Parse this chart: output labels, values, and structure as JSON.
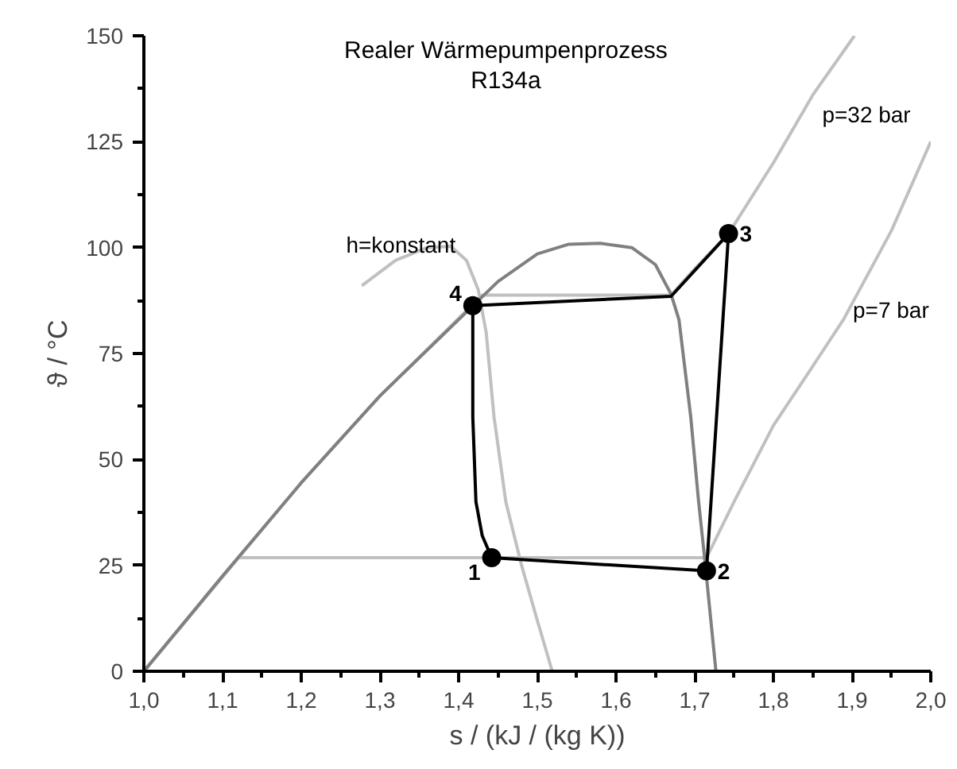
{
  "chart_data": {
    "type": "line",
    "title": "Realer Wärmepumpenprozess",
    "subtitle": "R134a",
    "xlabel": "s / (kJ / (kg K))",
    "ylabel": "ϑ / °C",
    "xlim": [
      1.0,
      2.0
    ],
    "ylim": [
      0,
      150
    ],
    "xticks": [
      {
        "value": 1.0,
        "label": "1,0"
      },
      {
        "value": 1.1,
        "label": "1,1"
      },
      {
        "value": 1.2,
        "label": "1,2"
      },
      {
        "value": 1.3,
        "label": "1,3"
      },
      {
        "value": 1.4,
        "label": "1,4"
      },
      {
        "value": 1.5,
        "label": "1,5"
      },
      {
        "value": 1.6,
        "label": "1,6"
      },
      {
        "value": 1.7,
        "label": "1,7"
      },
      {
        "value": 1.8,
        "label": "1,8"
      },
      {
        "value": 1.9,
        "label": "1,9"
      },
      {
        "value": 2.0,
        "label": "2,0"
      }
    ],
    "yticks": [
      0,
      25,
      50,
      75,
      100,
      125,
      150
    ],
    "grid": false,
    "marker": "none",
    "line_style": "solid",
    "series": [
      {
        "name": "p=7 bar",
        "color": "#c0c0c0",
        "x": [
          1.0,
          1.12,
          1.715,
          1.75,
          1.8,
          1.85,
          1.889,
          1.95,
          2.0
        ],
        "values": [
          0,
          26.8,
          26.8,
          40,
          58,
          72,
          83,
          104,
          125
        ]
      },
      {
        "name": "p=32 bar",
        "color": "#c0c0c0",
        "x": [
          1.0,
          1.2,
          1.3,
          1.43,
          1.67,
          1.7,
          1.743,
          1.8,
          1.85,
          1.903
        ],
        "values": [
          0,
          44.5,
          65,
          88.8,
          88.8,
          95,
          103.3,
          120,
          136,
          150
        ]
      },
      {
        "name": "h=konstant",
        "color": "#c0c0c0",
        "x": [
          1.277,
          1.32,
          1.36,
          1.39,
          1.41,
          1.425,
          1.435,
          1.445,
          1.46,
          1.48,
          1.5,
          1.519
        ],
        "values": [
          91,
          97,
          100,
          100.3,
          97,
          90,
          80,
          60,
          40,
          25,
          12,
          0
        ]
      },
      {
        "color": "#808080",
        "x": [
          1.0,
          1.1,
          1.2,
          1.3,
          1.4,
          1.45,
          1.5,
          1.54,
          1.58,
          1.62,
          1.65,
          1.67,
          1.68,
          1.695,
          1.705,
          1.713,
          1.727
        ],
        "values": [
          0,
          22.5,
          44.5,
          65,
          83,
          92,
          98.5,
          100.8,
          101,
          100,
          96,
          89,
          83,
          60,
          40,
          26,
          0
        ]
      },
      {
        "color": "#000000",
        "x": [
          1.442,
          1.715,
          1.743
        ],
        "values": [
          26.8,
          23.7,
          103.3
        ]
      },
      {
        "color": "#000000",
        "x": [
          1.418,
          1.67,
          1.743
        ],
        "values": [
          86.3,
          88.5,
          103.3
        ]
      },
      {
        "color": "#000000",
        "x": [
          1.418,
          1.418,
          1.422,
          1.43,
          1.442
        ],
        "values": [
          86.3,
          60,
          40,
          32,
          26.8
        ]
      },
      {
        "type": "scatter",
        "marker": "circle",
        "color": "#000000",
        "x": [
          1.442,
          1.715,
          1.743,
          1.418
        ],
        "values": [
          26.8,
          23.7,
          103.3,
          86.3
        ]
      }
    ],
    "annotations": [
      {
        "text": "1",
        "x": 1.442,
        "y": 26.8
      },
      {
        "text": "2",
        "x": 1.715,
        "y": 23.7
      },
      {
        "text": "3",
        "x": 1.743,
        "y": 103.3
      },
      {
        "text": "4",
        "x": 1.418,
        "y": 86.3
      }
    ]
  }
}
